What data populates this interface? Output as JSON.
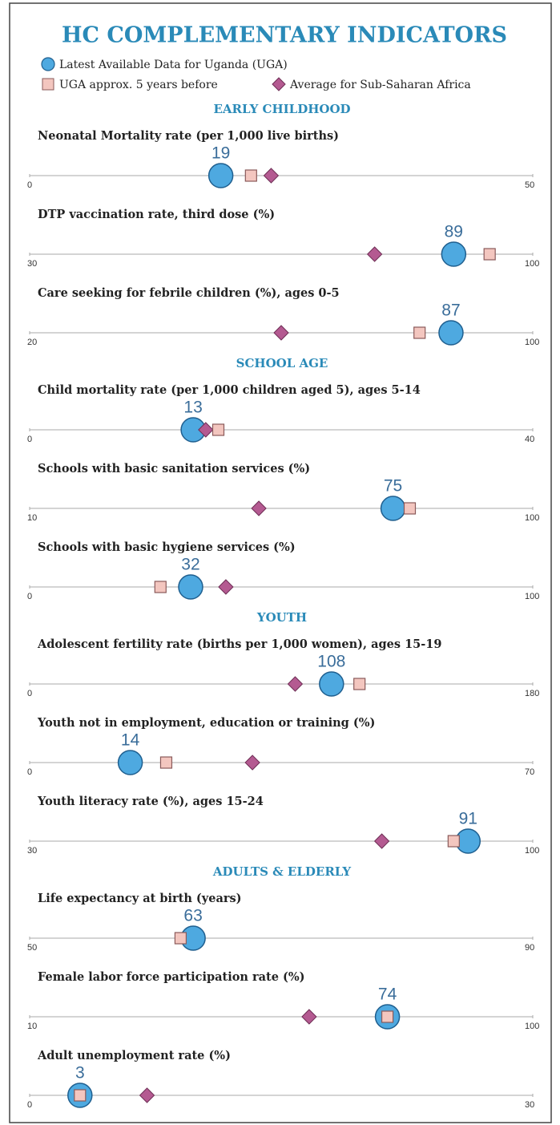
{
  "chart_data": {
    "type": "dot",
    "title": "HC COMPLEMENTARY INDICATORS",
    "legend": [
      {
        "name": "Latest Available Data for Uganda (UGA)",
        "color": "#4ea9e0",
        "marker": "circle"
      },
      {
        "name": "UGA approx. 5 years before",
        "color": "#f3c6bf",
        "marker": "square"
      },
      {
        "name": "Average for Sub-Saharan Africa",
        "color": "#b45a91",
        "marker": "diamond"
      }
    ],
    "sections": [
      {
        "title": "EARLY CHILDHOOD",
        "panels": [
          {
            "title": "Neonatal Mortality rate (per 1,000 live births)",
            "xlim": [
              0,
              50
            ],
            "xticks": [
              0,
              50
            ],
            "values": [
              19,
              22,
              24
            ]
          },
          {
            "title": "DTP vaccination rate, third dose (%)",
            "xlim": [
              30,
              100
            ],
            "xticks": [
              30,
              100
            ],
            "values": [
              89,
              94,
              78
            ]
          },
          {
            "title": "Care seeking for febrile children (%), ages 0-5",
            "xlim": [
              20,
              100
            ],
            "xticks": [
              20,
              100
            ],
            "values": [
              87,
              82,
              60
            ]
          }
        ]
      },
      {
        "title": "SCHOOL AGE",
        "panels": [
          {
            "title": "Child mortality rate (per 1,000 children aged 5), ages 5-14",
            "xlim": [
              0,
              40
            ],
            "xticks": [
              0,
              40
            ],
            "values": [
              13,
              15,
              14
            ]
          },
          {
            "title": "Schools with basic sanitation services (%)",
            "xlim": [
              10,
              100
            ],
            "xticks": [
              10,
              100
            ],
            "values": [
              75,
              78,
              51
            ]
          },
          {
            "title": "Schools with basic hygiene services (%)",
            "xlim": [
              0,
              100
            ],
            "xticks": [
              0,
              100
            ],
            "values": [
              32,
              26,
              39
            ]
          }
        ]
      },
      {
        "title": "YOUTH",
        "panels": [
          {
            "title": "Adolescent fertility rate (births per 1,000 women), ages 15-19",
            "xlim": [
              0,
              180
            ],
            "xticks": [
              0,
              180
            ],
            "values": [
              108,
              118,
              95
            ]
          },
          {
            "title": "Youth not in employment, education or training (%)",
            "xlim": [
              0,
              70
            ],
            "xticks": [
              0,
              70
            ],
            "values": [
              14,
              19,
              31
            ]
          },
          {
            "title": "Youth literacy rate (%), ages 15-24",
            "xlim": [
              30,
              100
            ],
            "xticks": [
              30,
              100
            ],
            "values": [
              91,
              89,
              79
            ]
          }
        ]
      },
      {
        "title": "ADULTS & ELDERLY",
        "panels": [
          {
            "title": "Life expectancy at birth (years)",
            "xlim": [
              50,
              90
            ],
            "xticks": [
              50,
              90
            ],
            "values": [
              63,
              62,
              null
            ]
          },
          {
            "title": "Female labor force participation rate (%)",
            "xlim": [
              10,
              100
            ],
            "xticks": [
              10,
              100
            ],
            "values": [
              74,
              74,
              60
            ]
          },
          {
            "title": "Adult unemployment rate (%)",
            "xlim": [
              0,
              30
            ],
            "xticks": [
              0,
              30
            ],
            "values": [
              3,
              3,
              7
            ]
          }
        ]
      }
    ]
  }
}
